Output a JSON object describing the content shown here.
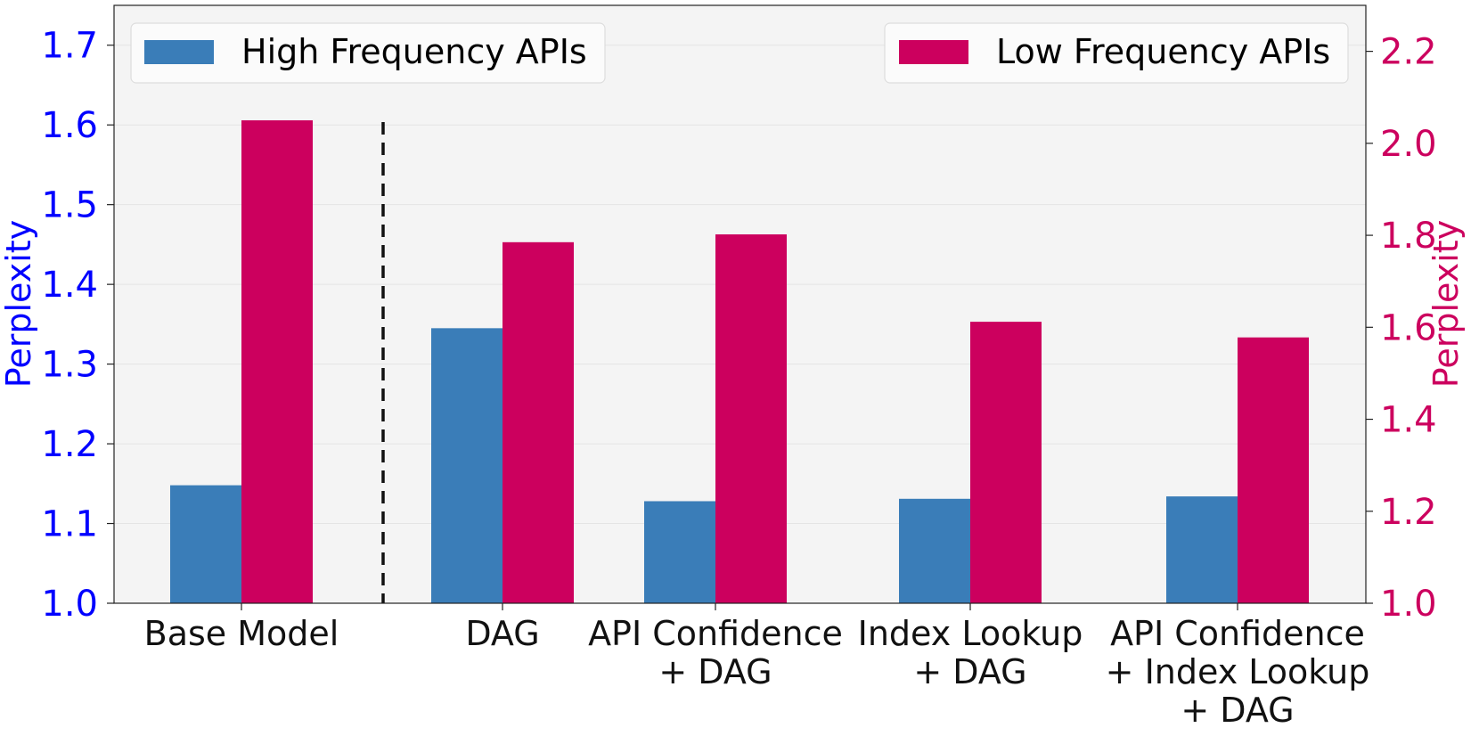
{
  "colors": {
    "high_frequency": "#3a7db8",
    "low_frequency": "#cc005e",
    "left_axis": "#0000ff",
    "right_axis": "#cc005e",
    "plot_background": "#f4f4f4"
  },
  "chart_data": {
    "type": "bar",
    "categories": [
      [
        "Base Model"
      ],
      [
        "DAG"
      ],
      [
        "API Confidence",
        "+ DAG"
      ],
      [
        "Index Lookup",
        "+ DAG"
      ],
      [
        "API Confidence",
        "+ Index Lookup",
        "+ DAG"
      ]
    ],
    "series": [
      {
        "name": "High Frequency APIs",
        "axis": "left",
        "color": "#3a7db8",
        "values": [
          1.148,
          1.345,
          1.128,
          1.131,
          1.134
        ]
      },
      {
        "name": "Low Frequency APIs",
        "axis": "right",
        "color": "#cc005e",
        "values": [
          2.05,
          1.785,
          1.802,
          1.612,
          1.578
        ]
      }
    ],
    "left_axis": {
      "label": "Perplexity",
      "range": [
        1.0,
        1.75
      ],
      "ticks": [
        "1.0",
        "1.1",
        "1.2",
        "1.3",
        "1.4",
        "1.5",
        "1.6",
        "1.7"
      ]
    },
    "right_axis": {
      "label": "Perplexity",
      "range": [
        1.0,
        2.3
      ],
      "ticks": [
        "1.0",
        "1.2",
        "1.4",
        "1.6",
        "1.8",
        "2.0",
        "2.2"
      ]
    },
    "separator_after_category": 0,
    "grid": true,
    "legend_placement": "top-left and top-right"
  }
}
